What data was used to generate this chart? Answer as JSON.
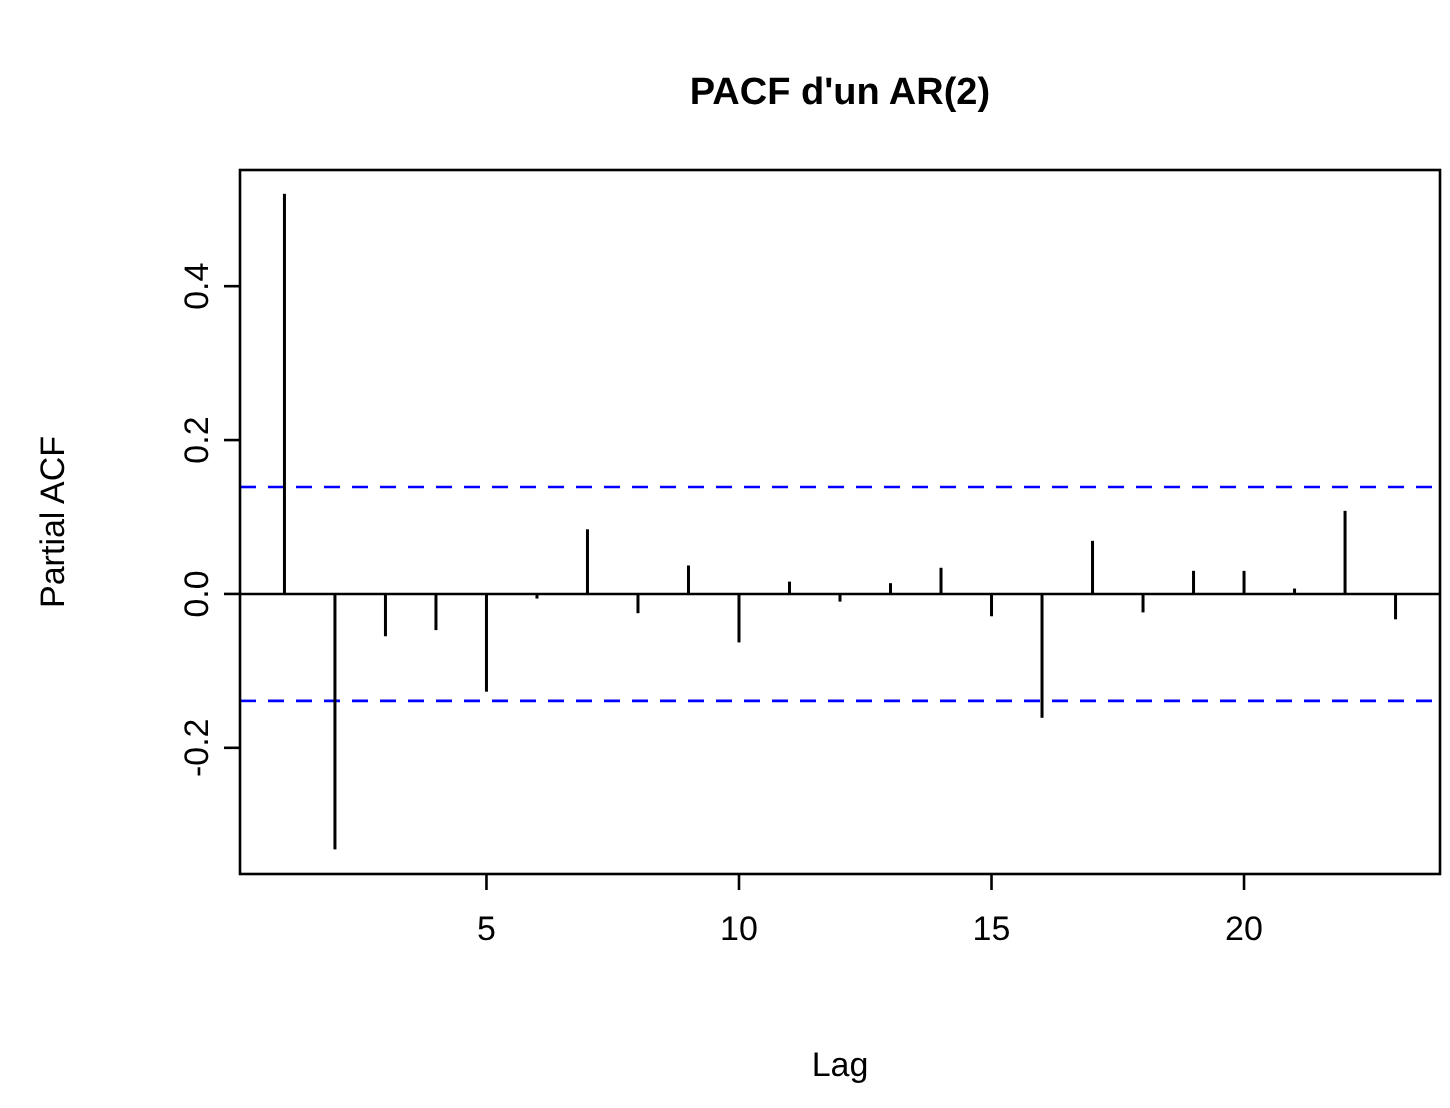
{
  "chart_data": {
    "type": "bar",
    "title": "PACF d'un AR(2)",
    "xlabel": "Lag",
    "ylabel": "Partial ACF",
    "x": [
      1,
      2,
      3,
      4,
      5,
      6,
      7,
      8,
      9,
      10,
      11,
      12,
      13,
      14,
      15,
      16,
      17,
      18,
      19,
      20,
      21,
      22,
      23
    ],
    "values": [
      0.52,
      -0.332,
      -0.055,
      -0.047,
      -0.127,
      -0.006,
      0.084,
      -0.025,
      0.037,
      -0.063,
      0.016,
      -0.01,
      0.014,
      0.034,
      -0.029,
      -0.161,
      0.069,
      -0.024,
      0.03,
      0.03,
      0.007,
      0.108,
      -0.033
    ],
    "color": "#000000",
    "xlim": [
      0.12,
      23.88
    ],
    "xticks": [
      5,
      10,
      15,
      20
    ],
    "ylim": [
      -0.364,
      0.551
    ],
    "yticks": [
      -0.2,
      {
        "value": 0,
        "label": "0.0"
      },
      0.2,
      0.4
    ],
    "ref_lines": [
      {
        "axis": "y",
        "value": 0,
        "color": "#000000",
        "line_style": "solid"
      },
      {
        "axis": "y",
        "value": 0.139,
        "color": "#0000ff",
        "line_style": "dashed"
      },
      {
        "axis": "y",
        "value": -0.139,
        "color": "#0000ff",
        "line_style": "dashed"
      }
    ],
    "grid": false
  }
}
